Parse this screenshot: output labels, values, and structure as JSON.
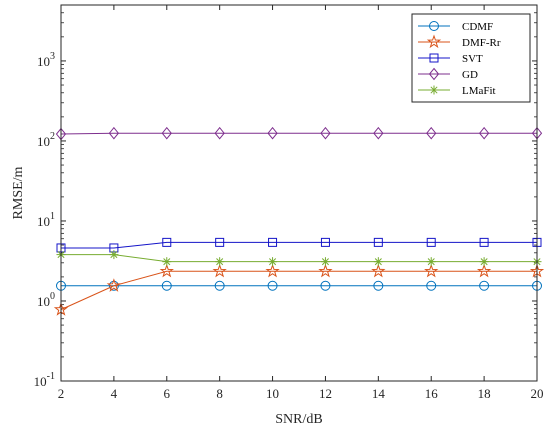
{
  "chart_data": {
    "type": "line",
    "title": "",
    "xlabel": "SNR/dB",
    "ylabel": "RMSE/m",
    "x": [
      2,
      4,
      6,
      8,
      10,
      12,
      14,
      16,
      18,
      20
    ],
    "xlim": [
      2,
      20
    ],
    "xticks": [
      "2",
      "4",
      "6",
      "8",
      "10",
      "12",
      "14",
      "16",
      "18",
      "20"
    ],
    "yscale": "log",
    "ylim": [
      0.1,
      5000
    ],
    "yticks": [
      {
        "value": 0.1,
        "base": "10",
        "exp": "-1"
      },
      {
        "value": 1,
        "base": "10",
        "exp": "0"
      },
      {
        "value": 10,
        "base": "10",
        "exp": "1"
      },
      {
        "value": 100,
        "base": "10",
        "exp": "2"
      },
      {
        "value": 1000,
        "base": "10",
        "exp": "3"
      }
    ],
    "grid": false,
    "legend_position": "top-right",
    "series": [
      {
        "name": "CDMF",
        "marker": "circle",
        "color": "#0072BD",
        "values": [
          1.55,
          1.55,
          1.55,
          1.55,
          1.55,
          1.55,
          1.55,
          1.55,
          1.55,
          1.55
        ]
      },
      {
        "name": "DMF-Rr",
        "marker": "star",
        "color": "#D95319",
        "values": [
          0.78,
          1.55,
          2.35,
          2.35,
          2.35,
          2.35,
          2.35,
          2.35,
          2.35,
          2.35
        ]
      },
      {
        "name": "SVT",
        "marker": "square",
        "color": "#1414C8",
        "values": [
          4.6,
          4.6,
          5.4,
          5.4,
          5.4,
          5.4,
          5.4,
          5.4,
          5.4,
          5.4
        ]
      },
      {
        "name": "GD",
        "marker": "diamond",
        "color": "#7E2F8E",
        "values": [
          122,
          125,
          125,
          125,
          125,
          125,
          125,
          125,
          125,
          125
        ]
      },
      {
        "name": "LMaFit",
        "marker": "asterisk",
        "color": "#77AC30",
        "values": [
          3.8,
          3.8,
          3.1,
          3.1,
          3.1,
          3.1,
          3.1,
          3.1,
          3.1,
          3.1
        ]
      }
    ]
  }
}
